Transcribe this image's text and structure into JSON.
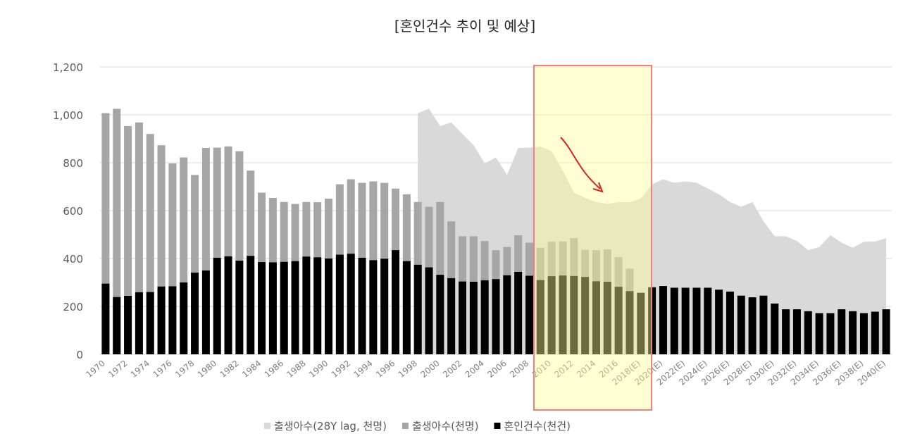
{
  "chart_data": {
    "type": "combo",
    "title": "[혼인건수 추이 및 예상]",
    "categories": [
      "1970",
      null,
      "1972",
      null,
      "1974",
      null,
      "1976",
      null,
      "1978",
      null,
      "1980",
      null,
      "1982",
      null,
      "1984",
      null,
      "1986",
      null,
      "1988",
      null,
      "1990",
      null,
      "1992",
      null,
      "1994",
      null,
      "1996",
      null,
      "1998",
      null,
      "2000",
      null,
      "2002",
      null,
      "2004",
      null,
      "2006",
      null,
      "2008",
      null,
      "2010",
      null,
      "2012",
      null,
      "2014",
      null,
      "2016",
      null,
      "2018(E)",
      null,
      "2020(E)",
      null,
      "2022(E)",
      null,
      "2024(E)",
      null,
      "2026(E)",
      null,
      "2028(E)",
      null,
      "2030(E)",
      null,
      "2032(E)",
      null,
      "2034(E)",
      null,
      "2036(E)",
      null,
      "2038(E)",
      null,
      "2040(E)"
    ],
    "series": [
      {
        "name": "출생아수(28Y lag, 천명)",
        "type": "area",
        "color": "#d9d9d9",
        "values": [
          null,
          null,
          null,
          null,
          null,
          null,
          null,
          null,
          null,
          null,
          null,
          null,
          null,
          null,
          null,
          null,
          null,
          null,
          null,
          null,
          null,
          null,
          null,
          null,
          null,
          null,
          null,
          null,
          1007,
          1025,
          953,
          968,
          920,
          873,
          797,
          822,
          749,
          862,
          863,
          868,
          848,
          767,
          675,
          653,
          636,
          628,
          636,
          635,
          650,
          710,
          731,
          716,
          722,
          716,
          692,
          668,
          636,
          616,
          636,
          555,
          493,
          493,
          473,
          435,
          448,
          497,
          466,
          445,
          470,
          471,
          485
        ]
      },
      {
        "name": "출생아수(천명)",
        "type": "bar",
        "color": "#a6a6a6",
        "values": [
          1007,
          1025,
          953,
          968,
          920,
          873,
          797,
          822,
          749,
          862,
          863,
          868,
          848,
          767,
          675,
          653,
          636,
          628,
          636,
          635,
          650,
          710,
          731,
          716,
          722,
          716,
          692,
          668,
          636,
          616,
          636,
          555,
          493,
          493,
          473,
          435,
          448,
          497,
          466,
          445,
          470,
          471,
          485,
          436,
          435,
          438,
          406,
          358,
          null,
          null,
          null,
          null,
          null,
          null,
          null,
          null,
          null,
          null,
          null,
          null,
          null,
          null,
          null,
          null,
          null,
          null,
          null,
          null,
          null,
          null,
          null
        ]
      },
      {
        "name": "혼인건수(천건)",
        "type": "bar",
        "color": "#000000",
        "values": [
          295,
          239,
          244,
          259,
          260,
          283,
          284,
          300,
          341,
          350,
          403,
          409,
          391,
          411,
          385,
          384,
          386,
          389,
          408,
          405,
          400,
          416,
          420,
          403,
          393,
          399,
          435,
          389,
          374,
          363,
          332,
          318,
          304,
          303,
          309,
          314,
          330,
          344,
          328,
          310,
          326,
          329,
          327,
          323,
          305,
          303,
          282,
          264,
          257,
          280,
          285,
          278,
          278,
          278,
          278,
          270,
          262,
          245,
          238,
          245,
          212,
          188,
          188,
          180,
          172,
          172,
          188,
          180,
          172,
          178,
          188
        ]
      }
    ],
    "ylim": [
      0,
      1200
    ],
    "yticks": [
      0,
      200,
      400,
      600,
      800,
      {
        "value": 1000,
        "label": "1,000"
      },
      {
        "value": 1200,
        "label": "1,200"
      }
    ],
    "grid": true
  }
}
